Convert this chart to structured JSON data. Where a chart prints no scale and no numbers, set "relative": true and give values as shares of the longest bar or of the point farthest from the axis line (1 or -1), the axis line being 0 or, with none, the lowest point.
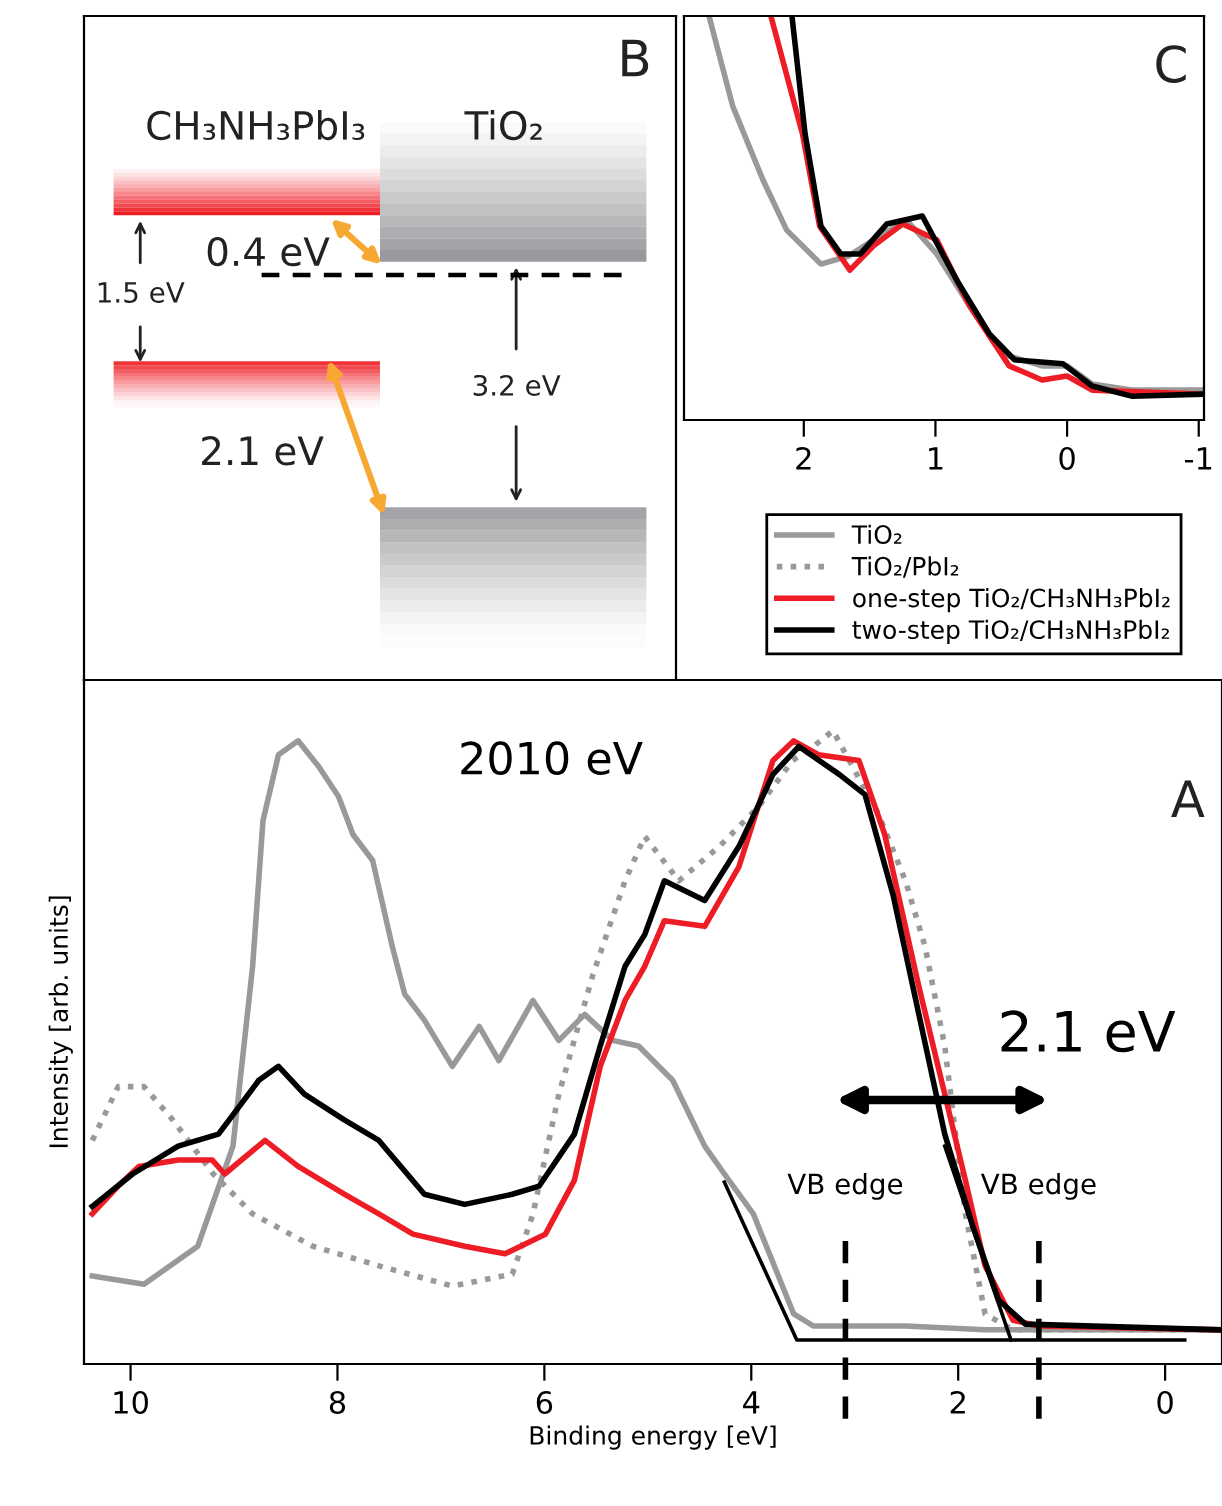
{
  "chart_data": [
    {
      "type": "other",
      "annotations": [
        "B",
        "CH₃NH₃PbI₃",
        "TiO₂",
        "0.4 eV",
        "1.5 eV",
        "3.2 eV",
        "2.1 eV"
      ]
    },
    {
      "type": "line",
      "relative": true,
      "xlim": [
        2.91,
        -1.04
      ],
      "xticks": [
        2,
        1,
        0,
        -1
      ],
      "tick_labels": "x",
      "grid": false,
      "annotations": [
        "C"
      ],
      "series": [
        {
          "color": "#999999",
          "x": [
            2.72,
            2.54,
            2.31,
            2.13,
            1.87,
            1.66,
            1.47,
            1.22,
            0.99,
            0.74,
            0.49,
            0.19,
            0.0,
            -0.19,
            -0.49,
            -1.03
          ],
          "values": [
            1.0,
            0.777,
            0.594,
            0.47,
            0.386,
            0.406,
            0.446,
            0.495,
            0.411,
            0.282,
            0.163,
            0.134,
            0.134,
            0.089,
            0.074,
            0.074
          ]
        },
        {
          "color": "#ee1c24",
          "x": [
            2.25,
            2.01,
            1.88,
            1.65,
            1.47,
            1.25,
            0.99,
            0.74,
            0.44,
            0.19,
            0.0,
            -0.19,
            -1.03
          ],
          "values": [
            1.0,
            0.708,
            0.48,
            0.371,
            0.431,
            0.485,
            0.446,
            0.282,
            0.134,
            0.099,
            0.109,
            0.074,
            0.064
          ]
        },
        {
          "color": "#000000",
          "x": [
            2.09,
            1.99,
            1.87,
            1.72,
            1.57,
            1.37,
            1.1,
            0.84,
            0.59,
            0.4,
            0.03,
            -0.19,
            -0.49,
            -1.03
          ],
          "values": [
            1.0,
            0.708,
            0.48,
            0.411,
            0.411,
            0.485,
            0.505,
            0.347,
            0.213,
            0.149,
            0.139,
            0.084,
            0.059,
            0.064
          ]
        }
      ]
    },
    {
      "type": "line",
      "relative": true,
      "xlabel": "Binding energy [eV]",
      "ylabel": "Intensity [arb. units]",
      "xlim": [
        10.45,
        -0.55
      ],
      "xticks": [
        10,
        8,
        6,
        4,
        2,
        0
      ],
      "tick_labels": "x",
      "grid": false,
      "legend": "top right",
      "annotations": [
        "2010 eV",
        "A",
        "2.1 eV"
      ],
      "ref_lines": [
        {
          "axis": "x",
          "value": 3.09,
          "label": "VB edge",
          "color": "#000000",
          "line_style": "dashed"
        },
        {
          "axis": "x",
          "value": 1.22,
          "label": "VB edge",
          "color": "#000000",
          "line_style": "dashed"
        }
      ],
      "series": [
        {
          "name": "TiO₂",
          "color": "#999999",
          "x": [
            10.37,
            9.87,
            9.35,
            9.01,
            8.82,
            8.72,
            8.57,
            8.38,
            8.18,
            7.99,
            7.85,
            7.66,
            7.47,
            7.35,
            7.16,
            6.89,
            6.63,
            6.44,
            6.11,
            5.86,
            5.61,
            5.34,
            5.09,
            4.76,
            4.45,
            4.26,
            3.98,
            3.59,
            3.4,
            2.51,
            1.74,
            -0.52
          ],
          "values": [
            0.139,
            0.126,
            0.186,
            0.344,
            0.628,
            0.858,
            0.962,
            0.984,
            0.943,
            0.896,
            0.836,
            0.795,
            0.659,
            0.584,
            0.543,
            0.47,
            0.533,
            0.479,
            0.574,
            0.511,
            0.552,
            0.511,
            0.502,
            0.448,
            0.344,
            0.3,
            0.237,
            0.079,
            0.06,
            0.06,
            0.054,
            0.054
          ]
        },
        {
          "name": "TiO₂/PbI₂",
          "color": "#999999",
          "line_style": "dotted",
          "x": [
            10.37,
            10.12,
            9.87,
            9.59,
            9.2,
            8.82,
            8.24,
            7.6,
            6.89,
            6.31,
            6.11,
            5.86,
            5.53,
            5.22,
            5.03,
            4.7,
            4.31,
            3.93,
            3.6,
            3.4,
            3.21,
            3.02,
            2.77,
            2.51,
            2.32,
            2.13,
            1.93,
            1.74,
            1.47,
            -0.52
          ],
          "values": [
            0.353,
            0.438,
            0.438,
            0.385,
            0.3,
            0.237,
            0.186,
            0.155,
            0.123,
            0.142,
            0.237,
            0.426,
            0.615,
            0.763,
            0.833,
            0.763,
            0.817,
            0.88,
            0.953,
            0.975,
            1.0,
            0.943,
            0.868,
            0.763,
            0.659,
            0.502,
            0.237,
            0.079,
            0.054,
            0.054
          ]
        },
        {
          "name": "one-step TiO₂/CH₃NH₃PbI₂",
          "color": "#ee1c24",
          "x": [
            10.37,
            10.12,
            9.92,
            9.54,
            9.21,
            9.09,
            8.7,
            8.38,
            7.93,
            7.6,
            7.27,
            6.77,
            6.38,
            5.99,
            5.71,
            5.46,
            5.22,
            5.03,
            4.84,
            4.45,
            4.12,
            3.79,
            3.59,
            3.35,
            2.96,
            2.71,
            2.38,
            2.13,
            1.93,
            1.74,
            1.47,
            1.22,
            -0.52
          ],
          "values": [
            0.237,
            0.281,
            0.312,
            0.322,
            0.322,
            0.3,
            0.353,
            0.312,
            0.268,
            0.237,
            0.205,
            0.186,
            0.174,
            0.205,
            0.29,
            0.47,
            0.574,
            0.628,
            0.7,
            0.691,
            0.785,
            0.953,
            0.984,
            0.962,
            0.953,
            0.836,
            0.596,
            0.426,
            0.29,
            0.155,
            0.069,
            0.06,
            0.054
          ]
        },
        {
          "name": "two-step TiO₂/CH₃NH₃PbI₂",
          "color": "#000000",
          "x": [
            10.37,
            9.98,
            9.54,
            9.15,
            8.76,
            8.57,
            8.32,
            7.93,
            7.6,
            7.16,
            6.77,
            6.31,
            6.05,
            5.71,
            5.46,
            5.22,
            5.03,
            4.84,
            4.45,
            4.12,
            3.79,
            3.54,
            3.15,
            2.9,
            2.63,
            2.38,
            2.13,
            1.86,
            1.61,
            1.35,
            -0.52
          ],
          "values": [
            0.249,
            0.3,
            0.344,
            0.363,
            0.448,
            0.47,
            0.426,
            0.385,
            0.353,
            0.268,
            0.252,
            0.268,
            0.281,
            0.363,
            0.502,
            0.628,
            0.678,
            0.763,
            0.732,
            0.817,
            0.931,
            0.975,
            0.931,
            0.899,
            0.741,
            0.552,
            0.363,
            0.218,
            0.101,
            0.063,
            0.054
          ]
        },
        {
          "type": "line",
          "color": "#000000",
          "x": [
            4.26,
            3.56,
            -0.19
          ],
          "values": [
            0.287,
            0.038,
            0.038
          ]
        },
        {
          "type": "line",
          "color": "#000000",
          "x": [
            2.13,
            1.49
          ],
          "values": [
            0.344,
            0.038
          ]
        }
      ]
    }
  ]
}
